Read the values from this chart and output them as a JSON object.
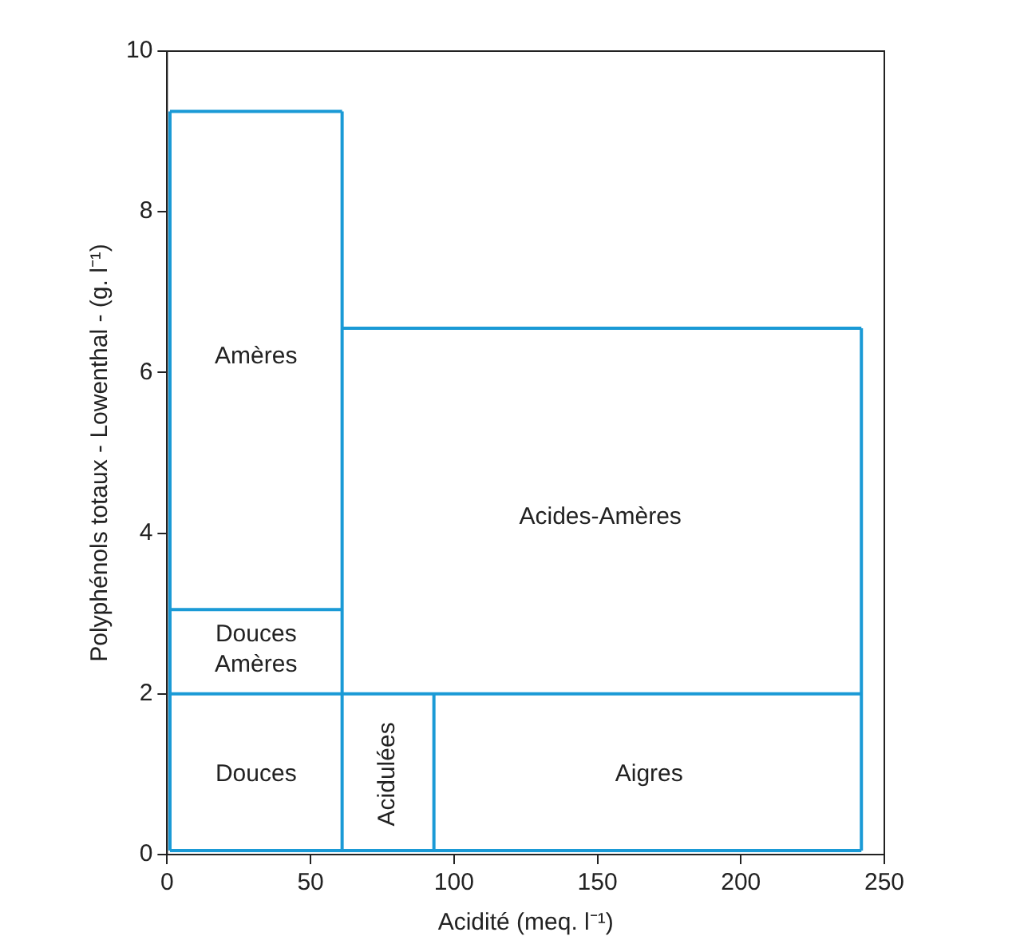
{
  "chart_data": {
    "type": "line",
    "xlabel": "Acidité (meq. l⁻¹)",
    "ylabel": "Polyphénols totaux - Lowenthal - (g. l⁻¹)",
    "xlim": [
      0,
      250
    ],
    "xticks": [
      0,
      50,
      100,
      150,
      200,
      250
    ],
    "ylim": [
      0,
      10
    ],
    "yticks": [
      0,
      2,
      4,
      6,
      8,
      10
    ],
    "grid": false,
    "legend": false,
    "marker": "none",
    "line_style": "solid",
    "series": [
      {
        "color": "#1a9ad6",
        "x": [
          1,
          61
        ],
        "values": [
          9.25,
          9.25
        ]
      },
      {
        "color": "#1a9ad6",
        "x": [
          61,
          242
        ],
        "values": [
          6.55,
          6.55
        ]
      },
      {
        "color": "#1a9ad6",
        "x": [
          1,
          61
        ],
        "values": [
          3.05,
          3.05
        ]
      },
      {
        "color": "#1a9ad6",
        "x": [
          1,
          242
        ],
        "values": [
          2,
          2
        ]
      },
      {
        "color": "#1a9ad6",
        "x": [
          1,
          242
        ],
        "values": [
          0.05,
          0.05
        ]
      },
      {
        "color": "#1a9ad6",
        "x": [
          1,
          1
        ],
        "values": [
          0.05,
          9.25
        ]
      },
      {
        "color": "#1a9ad6",
        "x": [
          61,
          61
        ],
        "values": [
          0.05,
          9.25
        ]
      },
      {
        "color": "#1a9ad6",
        "x": [
          93,
          93
        ],
        "values": [
          0.05,
          2
        ]
      },
      {
        "color": "#1a9ad6",
        "x": [
          242,
          242
        ],
        "values": [
          0.05,
          6.55
        ]
      }
    ],
    "annotations": [
      "Amères",
      "Douces\nAmères",
      "Douces",
      "Acides-Amères",
      "Acidulées",
      "Aigres"
    ]
  }
}
